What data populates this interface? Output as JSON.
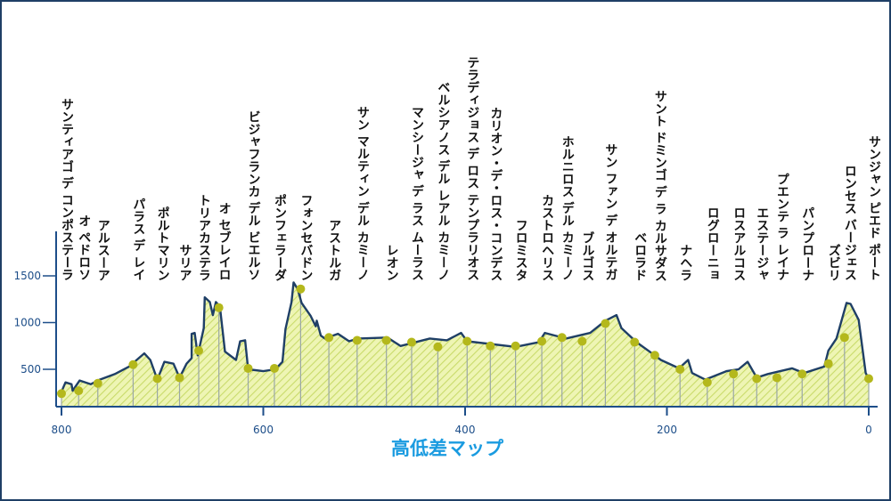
{
  "chart_data": {
    "type": "area",
    "title": "高低差マップ",
    "xlabel": "",
    "ylabel": "",
    "x_reversed": true,
    "xlim": [
      800,
      0
    ],
    "ylim": [
      100,
      1600
    ],
    "x_ticks": [
      800,
      600,
      400,
      200,
      0
    ],
    "y_ticks": [
      500,
      1000,
      1500
    ],
    "profile": [
      [
        800,
        260
      ],
      [
        796,
        360
      ],
      [
        790,
        340
      ],
      [
        789,
        270
      ],
      [
        782,
        380
      ],
      [
        771,
        340
      ],
      [
        762,
        390
      ],
      [
        747,
        450
      ],
      [
        733,
        530
      ],
      [
        718,
        670
      ],
      [
        712,
        600
      ],
      [
        705,
        390
      ],
      [
        698,
        580
      ],
      [
        689,
        560
      ],
      [
        683,
        410
      ],
      [
        676,
        560
      ],
      [
        671,
        620
      ],
      [
        671,
        880
      ],
      [
        668,
        890
      ],
      [
        665,
        650
      ],
      [
        659,
        940
      ],
      [
        658,
        1270
      ],
      [
        653,
        1220
      ],
      [
        650,
        1080
      ],
      [
        647,
        1220
      ],
      [
        643,
        1170
      ],
      [
        638,
        690
      ],
      [
        627,
        600
      ],
      [
        623,
        800
      ],
      [
        618,
        810
      ],
      [
        615,
        500
      ],
      [
        600,
        480
      ],
      [
        588,
        500
      ],
      [
        581,
        580
      ],
      [
        578,
        930
      ],
      [
        572,
        1220
      ],
      [
        570,
        1430
      ],
      [
        566,
        1360
      ],
      [
        562,
        1210
      ],
      [
        553,
        1070
      ],
      [
        548,
        960
      ],
      [
        547,
        1020
      ],
      [
        543,
        860
      ],
      [
        539,
        830
      ],
      [
        526,
        880
      ],
      [
        515,
        800
      ],
      [
        506,
        830
      ],
      [
        477,
        840
      ],
      [
        464,
        750
      ],
      [
        435,
        830
      ],
      [
        418,
        810
      ],
      [
        404,
        890
      ],
      [
        398,
        800
      ],
      [
        350,
        740
      ],
      [
        327,
        790
      ],
      [
        321,
        890
      ],
      [
        300,
        830
      ],
      [
        276,
        890
      ],
      [
        261,
        1020
      ],
      [
        250,
        1080
      ],
      [
        245,
        940
      ],
      [
        230,
        790
      ],
      [
        212,
        650
      ],
      [
        206,
        600
      ],
      [
        188,
        510
      ],
      [
        179,
        600
      ],
      [
        175,
        460
      ],
      [
        162,
        390
      ],
      [
        141,
        480
      ],
      [
        129,
        500
      ],
      [
        120,
        580
      ],
      [
        111,
        410
      ],
      [
        100,
        450
      ],
      [
        76,
        510
      ],
      [
        64,
        460
      ],
      [
        44,
        530
      ],
      [
        40,
        700
      ],
      [
        32,
        830
      ],
      [
        22,
        1210
      ],
      [
        18,
        1200
      ],
      [
        10,
        1030
      ],
      [
        3,
        460
      ],
      [
        0,
        400
      ]
    ],
    "towns": [
      {
        "name": "サンティアゴ デ コンポステーラ",
        "km": 800,
        "elev": 240
      },
      {
        "name": "オ ペドロソ",
        "km": 783,
        "elev": 270
      },
      {
        "name": "アルスーア",
        "km": 764,
        "elev": 350
      },
      {
        "name": "パラス デ レイ",
        "km": 729,
        "elev": 550
      },
      {
        "name": "ポルトマリン",
        "km": 705,
        "elev": 400
      },
      {
        "name": "サリア",
        "km": 683,
        "elev": 410
      },
      {
        "name": "トリアカステラ",
        "km": 664,
        "elev": 700
      },
      {
        "name": "オ セブレイロ",
        "km": 644,
        "elev": 1160
      },
      {
        "name": "ビジャフランカ デル ビエルソ",
        "km": 615,
        "elev": 510
      },
      {
        "name": "ポンフェラーダ",
        "km": 589,
        "elev": 510
      },
      {
        "name": "フォンセバドン",
        "km": 563,
        "elev": 1360
      },
      {
        "name": "アストルガ",
        "km": 535,
        "elev": 840
      },
      {
        "name": "サン マルティン デル カミーノ",
        "km": 507,
        "elev": 810
      },
      {
        "name": "レオン",
        "km": 478,
        "elev": 810
      },
      {
        "name": "マンシージャ デ ラス ムーラス",
        "km": 453,
        "elev": 790
      },
      {
        "name": "ベルシアノス デル レアル カミーノ",
        "km": 427,
        "elev": 740
      },
      {
        "name": "テラディジョス デ ロス テンプラリオス",
        "km": 398,
        "elev": 800
      },
      {
        "name": "カリオン・デ・ロス・コンデス",
        "km": 375,
        "elev": 750
      },
      {
        "name": "フロミスタ",
        "km": 350,
        "elev": 750
      },
      {
        "name": "カストロヘリス",
        "km": 324,
        "elev": 800
      },
      {
        "name": "ホルニロス デル カミーノ",
        "km": 304,
        "elev": 840
      },
      {
        "name": "ブルゴス",
        "km": 284,
        "elev": 800
      },
      {
        "name": "サン ファン デ オルテガ",
        "km": 261,
        "elev": 990
      },
      {
        "name": "ベロラド",
        "km": 232,
        "elev": 790
      },
      {
        "name": "サント ドミンゴ デ ラ カルサダス",
        "km": 212,
        "elev": 650
      },
      {
        "name": "ナヘラ",
        "km": 187,
        "elev": 500
      },
      {
        "name": "ログローニョ",
        "km": 160,
        "elev": 360
      },
      {
        "name": "ロスアルコス",
        "km": 134,
        "elev": 450
      },
      {
        "name": "エステージャ",
        "km": 111,
        "elev": 400
      },
      {
        "name": "プエンテ ラ レイナ",
        "km": 91,
        "elev": 410
      },
      {
        "name": "パンプローナ",
        "km": 66,
        "elev": 450
      },
      {
        "name": "ズビリ",
        "km": 40,
        "elev": 560
      },
      {
        "name": "ロンセス バージェス",
        "km": 24,
        "elev": 840
      },
      {
        "name": "サンジャン ピエド ポート",
        "km": 0,
        "elev": 400
      }
    ],
    "grid": false,
    "legend": "none"
  },
  "colors": {
    "axis": "#1d4e89",
    "line": "#1f3f66",
    "fill": "#eef5b4",
    "hatch": "#c9db6a",
    "dot": "#b4b81c",
    "drop": "#9aa7a6",
    "title": "#1a9be0"
  }
}
